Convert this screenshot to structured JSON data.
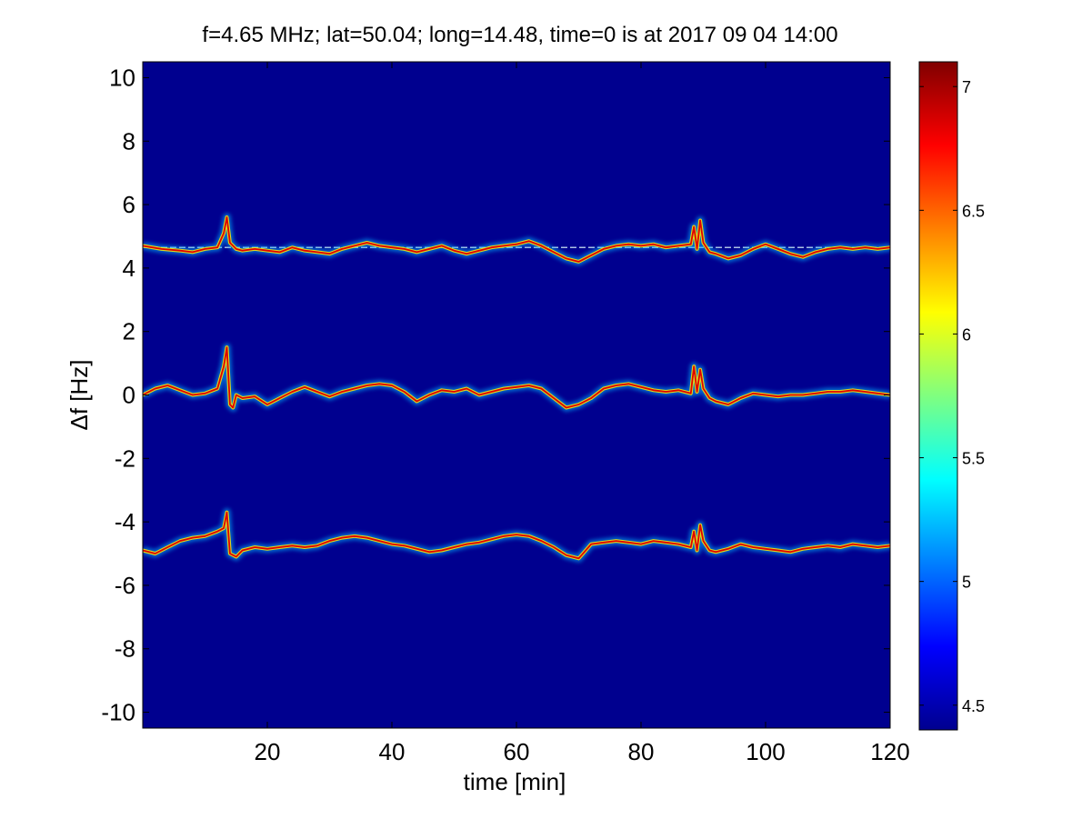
{
  "chart_data": {
    "type": "heatmap",
    "title": "f=4.65 MHz;  lat=50.04; long=14.48, time=0 is at 2017 09 04 14:00",
    "xlabel": "time [min]",
    "ylabel": "Δf [Hz]",
    "xlim": [
      0,
      120
    ],
    "ylim": [
      -10.5,
      10.5
    ],
    "xticks": [
      20,
      40,
      60,
      80,
      100,
      120
    ],
    "yticks": [
      -10,
      -8,
      -6,
      -4,
      -2,
      0,
      2,
      4,
      6,
      8,
      10
    ],
    "colorbar": {
      "colormap": "jet",
      "clim": [
        4.4,
        7.1
      ],
      "ticks": [
        4.5,
        5,
        5.5,
        6,
        6.5,
        7
      ]
    },
    "background_color": "#00008f",
    "reference_line_y": 4.65,
    "series": [
      {
        "x": [
          0,
          3,
          6,
          8,
          10,
          12,
          13,
          13.5,
          14,
          15,
          16,
          18,
          20,
          22,
          24,
          26,
          28,
          30,
          32,
          34,
          36,
          38,
          40,
          42,
          44,
          46,
          48,
          50,
          52,
          54,
          56,
          58,
          60,
          62,
          64,
          66,
          68,
          70,
          72,
          74,
          76,
          78,
          80,
          82,
          84,
          86,
          88,
          88.5,
          89,
          89.5,
          90,
          91,
          92,
          94,
          96,
          98,
          100,
          102,
          104,
          106,
          108,
          110,
          112,
          114,
          116,
          118,
          120
        ],
        "y": [
          4.7,
          4.6,
          4.55,
          4.5,
          4.6,
          4.65,
          5.1,
          5.6,
          4.8,
          4.6,
          4.55,
          4.6,
          4.55,
          4.5,
          4.65,
          4.55,
          4.5,
          4.45,
          4.6,
          4.7,
          4.8,
          4.7,
          4.65,
          4.6,
          4.5,
          4.6,
          4.7,
          4.55,
          4.45,
          4.55,
          4.65,
          4.7,
          4.75,
          4.85,
          4.7,
          4.5,
          4.3,
          4.2,
          4.4,
          4.6,
          4.7,
          4.75,
          4.7,
          4.75,
          4.65,
          4.7,
          4.75,
          5.3,
          4.6,
          5.5,
          4.8,
          4.5,
          4.45,
          4.3,
          4.4,
          4.6,
          4.75,
          4.6,
          4.45,
          4.35,
          4.5,
          4.6,
          4.65,
          4.6,
          4.65,
          4.6,
          4.65
        ]
      },
      {
        "x": [
          0,
          2,
          4,
          6,
          8,
          10,
          12,
          13,
          13.5,
          14,
          14.5,
          15,
          16,
          18,
          20,
          22,
          24,
          26,
          28,
          30,
          32,
          34,
          36,
          38,
          40,
          42,
          44,
          46,
          48,
          50,
          52,
          54,
          56,
          58,
          60,
          62,
          64,
          66,
          68,
          70,
          72,
          74,
          76,
          78,
          80,
          82,
          84,
          86,
          88,
          88.5,
          89,
          89.5,
          90,
          91,
          92,
          94,
          96,
          98,
          100,
          102,
          104,
          106,
          108,
          110,
          112,
          114,
          116,
          118,
          120
        ],
        "y": [
          0.0,
          0.2,
          0.3,
          0.15,
          0.0,
          0.05,
          0.2,
          0.9,
          1.5,
          -0.3,
          -0.4,
          0.0,
          -0.1,
          -0.05,
          -0.3,
          -0.1,
          0.1,
          0.25,
          0.1,
          -0.05,
          0.1,
          0.2,
          0.3,
          0.35,
          0.3,
          0.1,
          -0.2,
          0.0,
          0.15,
          0.1,
          0.2,
          0.0,
          0.1,
          0.2,
          0.25,
          0.3,
          0.2,
          -0.1,
          -0.4,
          -0.3,
          -0.1,
          0.2,
          0.3,
          0.35,
          0.25,
          0.15,
          0.1,
          0.15,
          0.05,
          0.9,
          0.1,
          0.8,
          0.2,
          -0.1,
          -0.2,
          -0.3,
          -0.1,
          0.05,
          0.0,
          -0.05,
          0.0,
          0.0,
          0.05,
          0.1,
          0.1,
          0.15,
          0.1,
          0.05,
          0.0
        ]
      },
      {
        "x": [
          0,
          2,
          4,
          6,
          8,
          10,
          12,
          13,
          13.5,
          14,
          15,
          16,
          18,
          20,
          22,
          24,
          26,
          28,
          30,
          32,
          34,
          36,
          38,
          40,
          42,
          44,
          46,
          48,
          50,
          52,
          54,
          56,
          58,
          60,
          62,
          64,
          66,
          68,
          70,
          72,
          74,
          76,
          78,
          80,
          82,
          84,
          86,
          88,
          88.5,
          89,
          89.5,
          90,
          91,
          92,
          94,
          96,
          98,
          100,
          102,
          104,
          106,
          108,
          110,
          112,
          114,
          116,
          118,
          120
        ],
        "y": [
          -4.9,
          -5.0,
          -4.8,
          -4.6,
          -4.5,
          -4.45,
          -4.3,
          -4.2,
          -3.7,
          -5.0,
          -5.1,
          -4.9,
          -4.8,
          -4.85,
          -4.8,
          -4.75,
          -4.8,
          -4.75,
          -4.6,
          -4.5,
          -4.45,
          -4.5,
          -4.6,
          -4.7,
          -4.75,
          -4.85,
          -4.95,
          -4.9,
          -4.8,
          -4.7,
          -4.65,
          -4.55,
          -4.45,
          -4.4,
          -4.45,
          -4.6,
          -4.8,
          -5.05,
          -5.15,
          -4.7,
          -4.65,
          -4.6,
          -4.65,
          -4.7,
          -4.6,
          -4.65,
          -4.7,
          -4.8,
          -4.3,
          -4.9,
          -4.1,
          -4.6,
          -4.9,
          -4.95,
          -4.85,
          -4.7,
          -4.8,
          -4.85,
          -4.9,
          -4.95,
          -4.85,
          -4.8,
          -4.75,
          -4.8,
          -4.7,
          -4.75,
          -4.8,
          -4.75
        ]
      }
    ]
  }
}
